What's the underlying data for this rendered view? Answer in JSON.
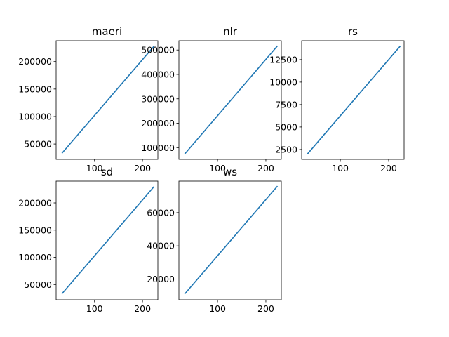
{
  "chart_data": [
    {
      "type": "line",
      "title": "maeri",
      "xlim": [
        20,
        232
      ],
      "ylim": [
        22000,
        238000
      ],
      "x_ticks": [
        100,
        200
      ],
      "y_ticks": [
        50000,
        100000,
        150000,
        200000
      ],
      "series": [
        {
          "color": "#1f77b4",
          "x": [
            32,
            224
          ],
          "y": [
            33000,
            228000
          ]
        }
      ]
    },
    {
      "type": "line",
      "title": "nlr",
      "xlim": [
        20,
        232
      ],
      "ylim": [
        52000,
        538000
      ],
      "x_ticks": [
        100,
        200
      ],
      "y_ticks": [
        100000,
        200000,
        300000,
        400000,
        500000
      ],
      "series": [
        {
          "color": "#1f77b4",
          "x": [
            32,
            224
          ],
          "y": [
            74000,
            517000
          ]
        }
      ]
    },
    {
      "type": "line",
      "title": "rs",
      "xlim": [
        20,
        232
      ],
      "ylim": [
        1400,
        14600
      ],
      "x_ticks": [
        100,
        200
      ],
      "y_ticks": [
        2500,
        5000,
        7500,
        10000,
        12500
      ],
      "series": [
        {
          "color": "#1f77b4",
          "x": [
            32,
            224
          ],
          "y": [
            2000,
            14000
          ]
        }
      ]
    },
    {
      "type": "line",
      "title": "sd",
      "xlim": [
        20,
        232
      ],
      "ylim": [
        22000,
        240000
      ],
      "x_ticks": [
        100,
        200
      ],
      "y_ticks": [
        50000,
        100000,
        150000,
        200000
      ],
      "series": [
        {
          "color": "#1f77b4",
          "x": [
            32,
            224
          ],
          "y": [
            33000,
            230000
          ]
        }
      ]
    },
    {
      "type": "line",
      "title": "ws",
      "xlim": [
        20,
        232
      ],
      "ylim": [
        7500,
        79000
      ],
      "x_ticks": [
        100,
        200
      ],
      "y_ticks": [
        20000,
        40000,
        60000
      ],
      "series": [
        {
          "color": "#1f77b4",
          "x": [
            32,
            224
          ],
          "y": [
            11000,
            76000
          ]
        }
      ]
    }
  ]
}
